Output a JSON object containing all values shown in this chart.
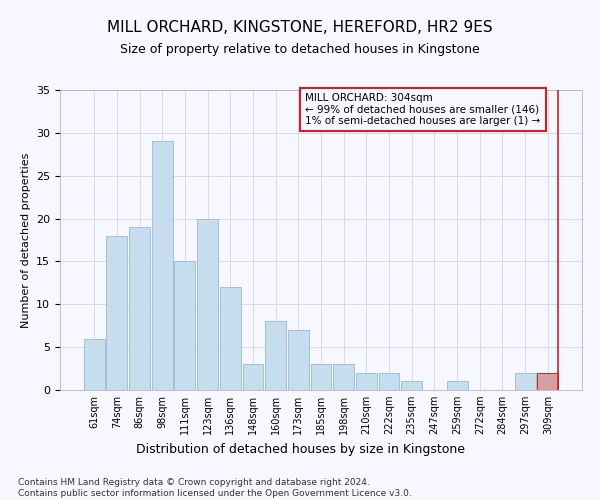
{
  "title": "MILL ORCHARD, KINGSTONE, HEREFORD, HR2 9ES",
  "subtitle": "Size of property relative to detached houses in Kingstone",
  "xlabel": "Distribution of detached houses by size in Kingstone",
  "ylabel": "Number of detached properties",
  "categories": [
    "61sqm",
    "74sqm",
    "86sqm",
    "98sqm",
    "111sqm",
    "123sqm",
    "136sqm",
    "148sqm",
    "160sqm",
    "173sqm",
    "185sqm",
    "198sqm",
    "210sqm",
    "222sqm",
    "235sqm",
    "247sqm",
    "259sqm",
    "272sqm",
    "284sqm",
    "297sqm",
    "309sqm"
  ],
  "values": [
    6,
    18,
    19,
    29,
    15,
    20,
    12,
    3,
    8,
    7,
    3,
    3,
    2,
    2,
    1,
    0,
    1,
    0,
    0,
    2,
    2
  ],
  "bar_color": "#c5ddef",
  "bar_edge_color": "#a0c0d8",
  "highlight_index": 20,
  "highlight_bar_color": "#d4a0a0",
  "highlight_bar_edge_color": "#cc2222",
  "annotation_box_color": "#cc2222",
  "annotation_text": "MILL ORCHARD: 304sqm\n← 99% of detached houses are smaller (146)\n1% of semi-detached houses are larger (1) →",
  "ylim": [
    0,
    35
  ],
  "yticks": [
    0,
    5,
    10,
    15,
    20,
    25,
    30,
    35
  ],
  "grid_color": "#d0d0d8",
  "background_color": "#f7f7ff",
  "title_fontsize": 11,
  "subtitle_fontsize": 9,
  "footer_line1": "Contains HM Land Registry data © Crown copyright and database right 2024.",
  "footer_line2": "Contains public sector information licensed under the Open Government Licence v3.0."
}
